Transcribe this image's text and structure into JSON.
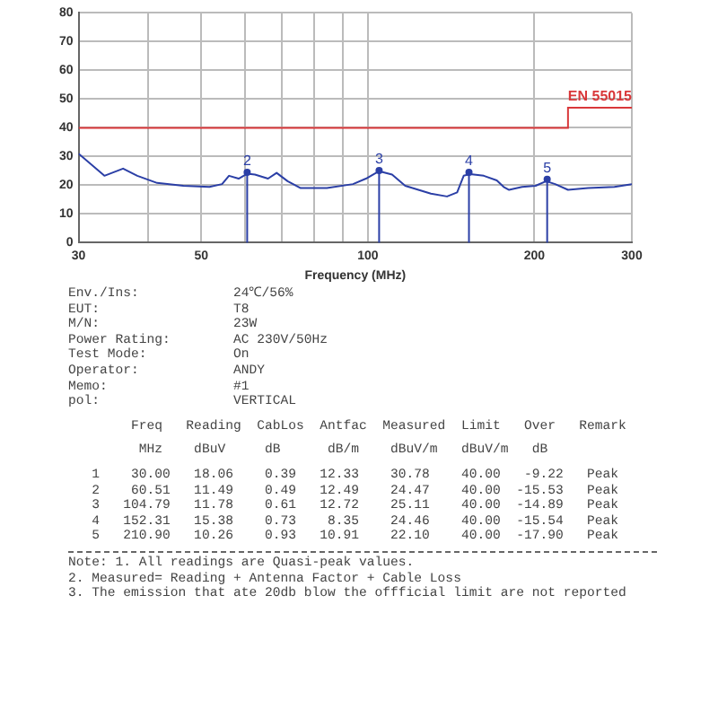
{
  "chart_data": {
    "type": "line",
    "xlabel": "Frequency (MHz)",
    "log": "x",
    "xlim": [
      30,
      300
    ],
    "ylim": [
      0,
      80
    ],
    "xticks": [
      30,
      {
        "value": 40,
        "label": null
      },
      50,
      {
        "value": 60,
        "label": null
      },
      {
        "value": 70,
        "label": null
      },
      {
        "value": 80,
        "label": null
      },
      {
        "value": 90,
        "label": null
      },
      100,
      200,
      300
    ],
    "yticks": [
      0,
      10,
      20,
      30,
      40,
      50,
      60,
      70,
      80
    ],
    "grid": true,
    "legend": false,
    "series": [
      {
        "color": "#2b3fa6",
        "x": [
          30,
          33.4,
          36.1,
          38.3,
          41.6,
          46.4,
          51.7,
          54.5,
          56.1,
          58.4,
          60.5,
          62.5,
          66,
          68.4,
          71.6,
          75.6,
          84.3,
          94,
          99.2,
          104.8,
          110.6,
          116.8,
          130,
          139,
          145,
          149,
          153,
          162,
          171,
          176,
          180,
          190,
          201,
          210,
          218,
          230,
          250,
          279,
          300
        ],
        "values": [
          31,
          23.3,
          25.8,
          23.3,
          20.8,
          19.8,
          19.4,
          20.4,
          23.3,
          22.3,
          24,
          23.7,
          22.3,
          24.3,
          21.4,
          19,
          19,
          20.4,
          22.3,
          24.9,
          23.7,
          19.8,
          17.1,
          16.1,
          17.5,
          23.3,
          23.9,
          23.3,
          21.7,
          19.4,
          18.4,
          19.4,
          19.8,
          21.4,
          20.4,
          18.4,
          19,
          19.4,
          20.4
        ]
      },
      {
        "type": "step",
        "name": "EN 55015",
        "color": "#d9383a",
        "x": [
          30,
          230,
          300
        ],
        "values": [
          40,
          47,
          47
        ]
      },
      {
        "type": "lollipop",
        "color": "#2b3fa6",
        "x": [
          60.51,
          104.79,
          152.31,
          210.9
        ],
        "values": [
          24.5,
          25.1,
          24.5,
          22.1
        ]
      }
    ],
    "annotations": [
      "Env./Ins:            24℃/56%",
      "EUT:                 T8",
      "M/N:                 23W",
      "Power Rating:        AC 230V/50Hz",
      "Test Mode:           On",
      "Operator:            ANDY",
      "Memo:                #1",
      {
        "text": "2",
        "x": 60.51,
        "y": 24.5
      },
      {
        "text": "3",
        "x": 104.79,
        "y": 25.1
      },
      {
        "text": "4",
        "x": 152.31,
        "y": 24.5
      },
      {
        "text": "5",
        "x": 210.9,
        "y": 22.1
      },
      "pol:                 VERTICAL",
      "        Freq   Reading  CabLos  Antfac  Measured  Limit   Over   Remark",
      "         MHz    dBuV     dB      dB/m    dBuV/m   dBuV/m   dB",
      "   1    30.00   18.06    0.39   12.33    30.78    40.00   -9.22   Peak",
      "   2    60.51   11.49    0.49   12.49    24.47    40.00  -15.53   Peak",
      "   3   104.79   11.78    0.61   12.72    25.11    40.00  -14.89   Peak",
      "   4   152.31   15.38    0.73    8.35    24.46    40.00  -15.54   Peak",
      "   5   210.90   10.26    0.93   10.91    22.10    40.00  -17.90   Peak",
      "Note: 1. All readings are Quasi-peak values.",
      "2. Measured= Reading + Antenna Factor + Cable Loss",
      "3. The emission that ate 20db blow the offficial limit are not reported"
    ]
  }
}
